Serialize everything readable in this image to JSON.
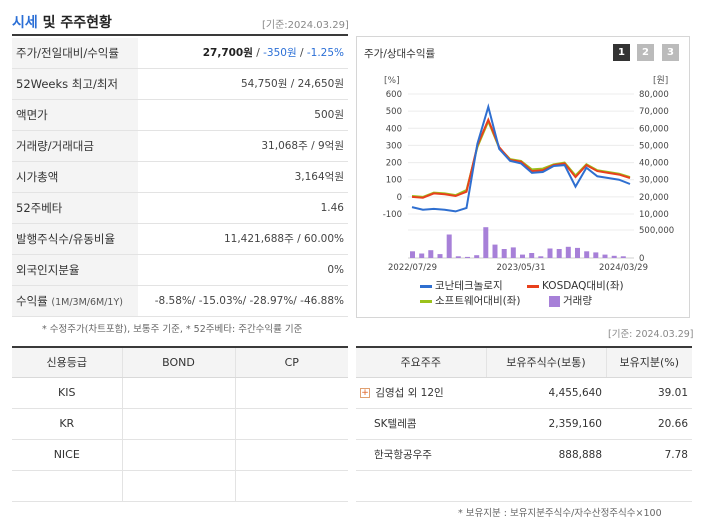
{
  "header": {
    "title_a": "시세",
    "title_b": "및 주주현황",
    "date": "[기준:2024.03.29]"
  },
  "info": {
    "rows": [
      {
        "label": "주가/전일대비/수익률",
        "v1": "27,700원",
        "v2": "-350원",
        "v3": "-1.25%"
      },
      {
        "label": "52Weeks 최고/최저",
        "value": "54,750원 / 24,650원"
      },
      {
        "label": "액면가",
        "value": "500원"
      },
      {
        "label": "거래량/거래대금",
        "value": "31,068주 / 9억원"
      },
      {
        "label": "시가총액",
        "value": "3,164억원"
      },
      {
        "label": "52주베타",
        "value": "1.46"
      },
      {
        "label": "발행주식수/유동비율",
        "value": "11,421,688주 / 60.00%"
      },
      {
        "label": "외국인지분율",
        "value": "0%"
      },
      {
        "label": "수익률",
        "label_small": "(1M/3M/6M/1Y)",
        "value": "-8.58%/ -15.03%/ -28.97%/ -46.88%"
      }
    ],
    "note": "* 수정주가(차트포함), 보통주 기준, * 52주베타: 주간수익률 기준"
  },
  "chart": {
    "title": "주가/상대수익률",
    "pages": [
      "1",
      "2",
      "3"
    ],
    "date_note": "[기준: 2024.03.29]",
    "left_unit": "[%]",
    "right_unit": "[원]",
    "legend": [
      {
        "label": "코난테크놀로지",
        "color": "#2f6fd0"
      },
      {
        "label": "KOSDAQ대비(좌)",
        "color": "#e8401c"
      },
      {
        "label": "소프트웨어대비(좌)",
        "color": "#9bc21b"
      },
      {
        "label": "거래량",
        "color": "#a780d8"
      }
    ]
  },
  "chart_data": {
    "type": "line",
    "x_ticks": [
      "2022/07/29",
      "2023/05/31",
      "2024/03/29"
    ],
    "left_axis": {
      "unit": "[%]",
      "ticks": [
        600,
        500,
        400,
        300,
        200,
        100,
        0,
        -100
      ],
      "ylim": [
        -100,
        600
      ]
    },
    "right_axis": {
      "unit": "[원]",
      "ticks": [
        "80,000",
        "70,000",
        "60,000",
        "50,000",
        "40,000",
        "30,000",
        "20,000",
        "10,000"
      ],
      "ylim": [
        10000,
        80000
      ]
    },
    "volume_axis": {
      "ticks": [
        "500,000",
        "0"
      ],
      "ylim": [
        0,
        500000
      ]
    },
    "series": [
      {
        "name": "코난테크놀로지",
        "color": "#2f6fd0",
        "values": [
          -60,
          -75,
          -70,
          -75,
          -85,
          -65,
          310,
          525,
          280,
          210,
          195,
          140,
          145,
          180,
          185,
          60,
          170,
          120,
          110,
          100,
          75
        ]
      },
      {
        "name": "KOSDAQ대비(좌)",
        "color": "#e8401c",
        "values": [
          0,
          -5,
          20,
          15,
          5,
          30,
          300,
          450,
          290,
          215,
          205,
          150,
          155,
          185,
          195,
          115,
          185,
          150,
          140,
          130,
          110
        ]
      },
      {
        "name": "소프트웨어대비(좌)",
        "color": "#9bc21b",
        "values": [
          5,
          0,
          25,
          20,
          10,
          40,
          290,
          440,
          285,
          220,
          210,
          160,
          165,
          190,
          200,
          125,
          190,
          155,
          145,
          135,
          115
        ]
      }
    ],
    "volume": {
      "name": "거래량",
      "color": "#a780d8",
      "values": [
        120000,
        80000,
        140000,
        70000,
        420000,
        30000,
        20000,
        50000,
        550000,
        240000,
        160000,
        190000,
        60000,
        90000,
        30000,
        170000,
        160000,
        200000,
        180000,
        120000,
        100000,
        60000,
        40000,
        30000
      ]
    }
  },
  "credit": {
    "headers": [
      "신용등급",
      "BOND",
      "CP"
    ],
    "rows": [
      [
        "KIS",
        "",
        ""
      ],
      [
        "KR",
        "",
        ""
      ],
      [
        "NICE",
        "",
        ""
      ],
      [
        "",
        "",
        ""
      ]
    ]
  },
  "holders": {
    "headers": [
      "주요주주",
      "보유주식수(보통)",
      "보유지분(%)"
    ],
    "rows": [
      {
        "name": "김영섭 외 12인",
        "shares": "4,455,640",
        "pct": "39.01",
        "expand": "+"
      },
      {
        "name": "SK텔레콤",
        "shares": "2,359,160",
        "pct": "20.66"
      },
      {
        "name": "한국항공우주",
        "shares": "888,888",
        "pct": "7.78"
      }
    ],
    "note": "* 보유지분 : 보유지분주식수/자수산정주식수×100"
  }
}
